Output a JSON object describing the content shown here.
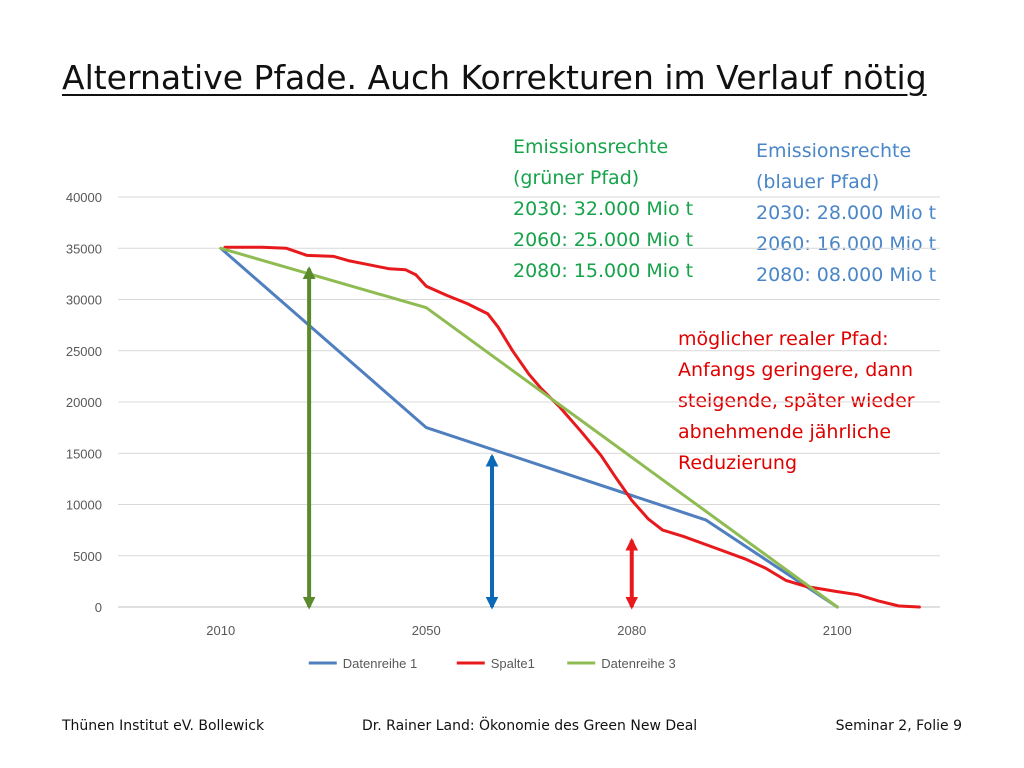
{
  "slide": {
    "title": "Alternative Pfade. Auch Korrekturen im Verlauf nötig",
    "notes": {
      "green": [
        "Emissionsrechte",
        "(grüner Pfad)",
        "2030: 32.000 Mio t",
        "2060: 25.000 Mio t",
        "2080: 15.000 Mio t"
      ],
      "blue": [
        "Emissionsrechte",
        "(blauer Pfad)",
        "2030: 28.000 Mio t",
        "2060: 16.000 Mio t",
        "2080: 08.000 Mio t"
      ],
      "red": [
        "möglicher realer Pfad:",
        "Anfangs geringere, dann",
        "steigende, später wieder",
        "abnehmende jährliche",
        "Reduzierung"
      ]
    },
    "footer": {
      "left": "Thünen Institut eV. Bollewick",
      "center": "Dr. Rainer Land: Ökonomie des Green New Deal",
      "right": "Seminar 2, Folie 9"
    },
    "colors": {
      "blue": "#4f7fbf",
      "green": "#8fbc52",
      "red": "#e8191c",
      "green_text": "#16a34a",
      "blue_text": "#4a86c8",
      "arrow_green": "#5a8a2b",
      "arrow_blue": "#0b6ab8",
      "arrow_red": "#e8191c"
    }
  },
  "chart_data": {
    "type": "line",
    "categories": [
      "2010",
      "2050",
      "2080",
      "2100"
    ],
    "x_range": [
      -0.5,
      3.5
    ],
    "ylim": [
      0,
      40000
    ],
    "yticks": [
      0,
      5000,
      10000,
      15000,
      20000,
      25000,
      30000,
      35000,
      40000
    ],
    "grid": true,
    "legend_position": "bottom",
    "series": [
      {
        "name": "Datenreihe 1",
        "color": "#4f7fbf",
        "points": [
          [
            0,
            35000
          ],
          [
            1,
            17500
          ],
          [
            2.36,
            8500
          ],
          [
            3,
            0
          ]
        ]
      },
      {
        "name": "Spalte1",
        "color": "#e8191c",
        "points": [
          [
            0.02,
            35100
          ],
          [
            0.2,
            35100
          ],
          [
            0.32,
            35000
          ],
          [
            0.42,
            34300
          ],
          [
            0.55,
            34200
          ],
          [
            0.62,
            33800
          ],
          [
            0.72,
            33400
          ],
          [
            0.82,
            33000
          ],
          [
            0.9,
            32900
          ],
          [
            0.95,
            32400
          ],
          [
            1.0,
            31300
          ],
          [
            1.1,
            30400
          ],
          [
            1.2,
            29600
          ],
          [
            1.3,
            28600
          ],
          [
            1.35,
            27300
          ],
          [
            1.42,
            25000
          ],
          [
            1.5,
            22700
          ],
          [
            1.56,
            21300
          ],
          [
            1.65,
            19500
          ],
          [
            1.75,
            17200
          ],
          [
            1.85,
            14800
          ],
          [
            1.92,
            12700
          ],
          [
            2.0,
            10400
          ],
          [
            2.08,
            8600
          ],
          [
            2.15,
            7500
          ],
          [
            2.25,
            6900
          ],
          [
            2.4,
            5800
          ],
          [
            2.55,
            4700
          ],
          [
            2.65,
            3800
          ],
          [
            2.75,
            2600
          ],
          [
            2.85,
            2000
          ],
          [
            3.0,
            1500
          ],
          [
            3.1,
            1200
          ],
          [
            3.2,
            600
          ],
          [
            3.3,
            100
          ],
          [
            3.4,
            0
          ]
        ]
      },
      {
        "name": "Datenreihe 3",
        "color": "#8fbc52",
        "points": [
          [
            0,
            35000
          ],
          [
            1,
            29200
          ],
          [
            3,
            0
          ]
        ]
      }
    ],
    "arrows": [
      {
        "x": 0.43,
        "y_from": 0,
        "y_to": 33000,
        "color": "#5a8a2b"
      },
      {
        "x": 1.32,
        "y_from": 0,
        "y_to": 14700,
        "color": "#0b6ab8"
      },
      {
        "x": 2.0,
        "y_from": 0,
        "y_to": 6500,
        "color": "#e8191c"
      }
    ]
  }
}
